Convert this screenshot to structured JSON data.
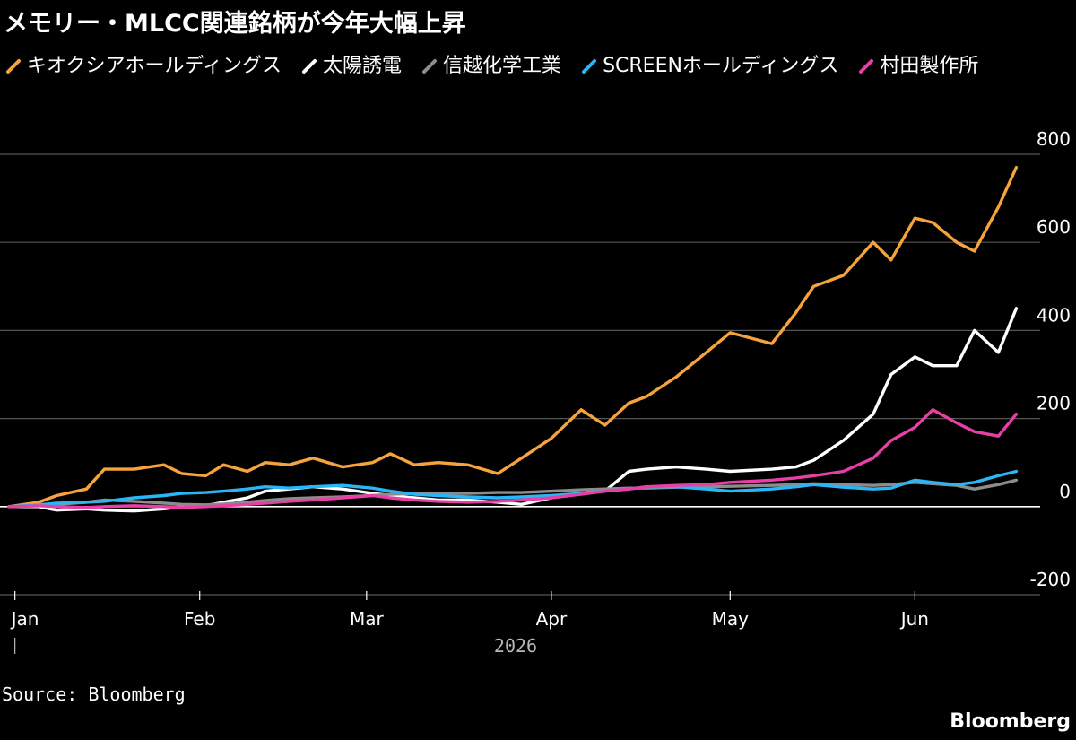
{
  "title": "メモリー・MLCC関連銘柄が今年大幅上昇",
  "source": "Source: Bloomberg",
  "brand": "Bloomberg",
  "chart_data": {
    "type": "line",
    "title": "メモリー・MLCC関連銘柄が今年大幅上昇",
    "xlabel": "2026",
    "ylabel": "",
    "ylim": [
      -200,
      800
    ],
    "yticks": [
      800,
      600,
      400,
      200,
      0,
      -200
    ],
    "x_tick_labels": [
      "Jan",
      "Feb",
      "Mar",
      "Apr",
      "May",
      "Jun"
    ],
    "x_ticks": [
      "2026-01-01",
      "2026-02-01",
      "2026-03-01",
      "2026-04-01",
      "2026-05-01",
      "2026-06-01"
    ],
    "xlim": [
      "2025-12-31",
      "2026-06-19"
    ],
    "grid": true,
    "legend_position": "top-left",
    "series": [
      {
        "name": "キオクシアホールディングス",
        "color": "#f7a33d",
        "x": [
          "2025-12-31",
          "2026-01-05",
          "2026-01-08",
          "2026-01-13",
          "2026-01-16",
          "2026-01-21",
          "2026-01-26",
          "2026-01-29",
          "2026-02-02",
          "2026-02-05",
          "2026-02-09",
          "2026-02-12",
          "2026-02-16",
          "2026-02-20",
          "2026-02-25",
          "2026-03-02",
          "2026-03-05",
          "2026-03-09",
          "2026-03-13",
          "2026-03-18",
          "2026-03-23",
          "2026-03-27",
          "2026-04-01",
          "2026-04-06",
          "2026-04-10",
          "2026-04-14",
          "2026-04-17",
          "2026-04-22",
          "2026-04-27",
          "2026-05-01",
          "2026-05-08",
          "2026-05-12",
          "2026-05-15",
          "2026-05-20",
          "2026-05-25",
          "2026-05-28",
          "2026-06-01",
          "2026-06-04",
          "2026-06-08",
          "2026-06-11",
          "2026-06-15",
          "2026-06-18"
        ],
        "values": [
          0,
          10,
          25,
          40,
          85,
          85,
          95,
          75,
          70,
          95,
          80,
          100,
          95,
          110,
          90,
          100,
          120,
          95,
          100,
          95,
          75,
          110,
          155,
          220,
          185,
          235,
          250,
          295,
          350,
          395,
          370,
          440,
          500,
          525,
          600,
          560,
          655,
          645,
          600,
          580,
          680,
          770
        ]
      },
      {
        "name": "太陽誘電",
        "color": "#ffffff",
        "x": [
          "2025-12-31",
          "2026-01-05",
          "2026-01-08",
          "2026-01-13",
          "2026-01-16",
          "2026-01-21",
          "2026-01-26",
          "2026-01-29",
          "2026-02-02",
          "2026-02-05",
          "2026-02-09",
          "2026-02-12",
          "2026-02-16",
          "2026-02-20",
          "2026-02-25",
          "2026-03-02",
          "2026-03-05",
          "2026-03-09",
          "2026-03-13",
          "2026-03-18",
          "2026-03-23",
          "2026-03-27",
          "2026-04-01",
          "2026-04-06",
          "2026-04-10",
          "2026-04-14",
          "2026-04-17",
          "2026-04-22",
          "2026-04-27",
          "2026-05-01",
          "2026-05-08",
          "2026-05-12",
          "2026-05-15",
          "2026-05-20",
          "2026-05-25",
          "2026-05-28",
          "2026-06-01",
          "2026-06-04",
          "2026-06-08",
          "2026-06-11",
          "2026-06-15",
          "2026-06-18"
        ],
        "values": [
          0,
          0,
          -8,
          -5,
          -8,
          -10,
          -5,
          0,
          2,
          10,
          20,
          35,
          40,
          45,
          40,
          30,
          25,
          20,
          15,
          15,
          10,
          5,
          20,
          30,
          35,
          80,
          85,
          90,
          85,
          80,
          85,
          90,
          105,
          150,
          210,
          300,
          340,
          320,
          320,
          400,
          350,
          450
        ]
      },
      {
        "name": "信越化学工業",
        "color": "#8c8c8c",
        "x": [
          "2025-12-31",
          "2026-01-05",
          "2026-01-08",
          "2026-01-13",
          "2026-01-16",
          "2026-01-21",
          "2026-01-26",
          "2026-01-29",
          "2026-02-02",
          "2026-02-05",
          "2026-02-09",
          "2026-02-12",
          "2026-02-16",
          "2026-02-20",
          "2026-02-25",
          "2026-03-02",
          "2026-03-05",
          "2026-03-09",
          "2026-03-13",
          "2026-03-18",
          "2026-03-23",
          "2026-03-27",
          "2026-04-01",
          "2026-04-06",
          "2026-04-10",
          "2026-04-14",
          "2026-04-17",
          "2026-04-22",
          "2026-04-27",
          "2026-05-01",
          "2026-05-08",
          "2026-05-12",
          "2026-05-15",
          "2026-05-20",
          "2026-05-25",
          "2026-05-28",
          "2026-06-01",
          "2026-06-04",
          "2026-06-08",
          "2026-06-11",
          "2026-06-15",
          "2026-06-18"
        ],
        "values": [
          0,
          2,
          5,
          10,
          15,
          12,
          8,
          5,
          4,
          6,
          10,
          14,
          18,
          20,
          22,
          25,
          28,
          30,
          30,
          30,
          32,
          32,
          35,
          38,
          40,
          42,
          42,
          44,
          45,
          46,
          48,
          50,
          52,
          50,
          48,
          50,
          55,
          52,
          48,
          40,
          50,
          60
        ]
      },
      {
        "name": "SCREENホールディングス",
        "color": "#29b6f6",
        "x": [
          "2025-12-31",
          "2026-01-05",
          "2026-01-08",
          "2026-01-13",
          "2026-01-16",
          "2026-01-21",
          "2026-01-26",
          "2026-01-29",
          "2026-02-02",
          "2026-02-05",
          "2026-02-09",
          "2026-02-12",
          "2026-02-16",
          "2026-02-20",
          "2026-02-25",
          "2026-03-02",
          "2026-03-05",
          "2026-03-09",
          "2026-03-13",
          "2026-03-18",
          "2026-03-23",
          "2026-03-27",
          "2026-04-01",
          "2026-04-06",
          "2026-04-10",
          "2026-04-14",
          "2026-04-17",
          "2026-04-22",
          "2026-04-27",
          "2026-05-01",
          "2026-05-08",
          "2026-05-12",
          "2026-05-15",
          "2026-05-20",
          "2026-05-25",
          "2026-05-28",
          "2026-06-01",
          "2026-06-04",
          "2026-06-08",
          "2026-06-11",
          "2026-06-15",
          "2026-06-18"
        ],
        "values": [
          0,
          4,
          8,
          10,
          12,
          20,
          25,
          30,
          32,
          35,
          40,
          45,
          42,
          45,
          48,
          42,
          35,
          28,
          25,
          22,
          20,
          22,
          25,
          30,
          35,
          40,
          45,
          45,
          40,
          35,
          40,
          45,
          50,
          44,
          40,
          42,
          60,
          55,
          50,
          55,
          70,
          80
        ]
      },
      {
        "name": "村田製作所",
        "color": "#e83fa7",
        "x": [
          "2025-12-31",
          "2026-01-05",
          "2026-01-08",
          "2026-01-13",
          "2026-01-16",
          "2026-01-21",
          "2026-01-26",
          "2026-01-29",
          "2026-02-02",
          "2026-02-05",
          "2026-02-09",
          "2026-02-12",
          "2026-02-16",
          "2026-02-20",
          "2026-02-25",
          "2026-03-02",
          "2026-03-05",
          "2026-03-09",
          "2026-03-13",
          "2026-03-18",
          "2026-03-23",
          "2026-03-27",
          "2026-04-01",
          "2026-04-06",
          "2026-04-10",
          "2026-04-14",
          "2026-04-17",
          "2026-04-22",
          "2026-04-27",
          "2026-05-01",
          "2026-05-08",
          "2026-05-12",
          "2026-05-15",
          "2026-05-20",
          "2026-05-25",
          "2026-05-28",
          "2026-06-01",
          "2026-06-04",
          "2026-06-08",
          "2026-06-11",
          "2026-06-15",
          "2026-06-18"
        ],
        "values": [
          0,
          2,
          0,
          -2,
          0,
          2,
          0,
          -2,
          0,
          2,
          5,
          8,
          12,
          15,
          20,
          25,
          20,
          15,
          12,
          10,
          12,
          15,
          20,
          28,
          35,
          40,
          45,
          48,
          50,
          55,
          60,
          65,
          70,
          80,
          110,
          150,
          180,
          220,
          190,
          170,
          160,
          210
        ]
      }
    ]
  }
}
